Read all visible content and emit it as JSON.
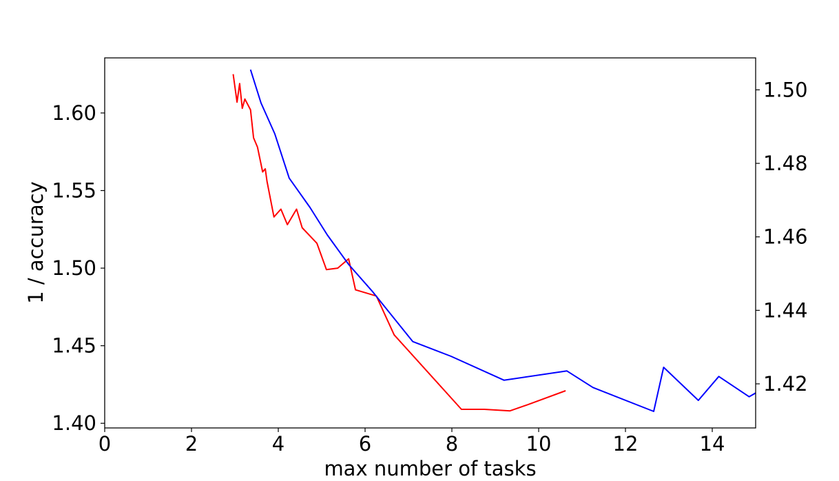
{
  "chart_data": {
    "type": "line",
    "title": "",
    "xlabel": "max number of tasks",
    "ylabel": "1 / accuracy",
    "y2label": "",
    "xlim": [
      0,
      15
    ],
    "ylim": [
      1.397,
      1.6355
    ],
    "y2lim": [
      1.408,
      1.5087
    ],
    "grid": false,
    "legend": "none",
    "xticks": [
      "0",
      "2",
      "4",
      "6",
      "8",
      "10",
      "12",
      "14"
    ],
    "yticks": [
      "1.40",
      "1.45",
      "1.50",
      "1.55",
      "1.60"
    ],
    "y2ticks": [
      "1.42",
      "1.44",
      "1.46",
      "1.48",
      "1.50"
    ],
    "series": [
      {
        "axis": "left",
        "color": "#ff0000",
        "x": [
          2.96,
          3.05,
          3.11,
          3.17,
          3.23,
          3.36,
          3.43,
          3.52,
          3.64,
          3.7,
          3.74,
          3.9,
          4.06,
          4.21,
          4.42,
          4.55,
          4.89,
          5.11,
          5.37,
          5.62,
          5.78,
          6.26,
          6.67,
          8.22,
          8.75,
          9.34,
          9.75,
          10.62
        ],
        "values": [
          1.625,
          1.607,
          1.619,
          1.603,
          1.609,
          1.602,
          1.584,
          1.578,
          1.562,
          1.564,
          1.556,
          1.533,
          1.538,
          1.528,
          1.538,
          1.526,
          1.516,
          1.499,
          1.5,
          1.506,
          1.486,
          1.482,
          1.457,
          1.409,
          1.409,
          1.408,
          1.412,
          1.421
        ]
      },
      {
        "axis": "right",
        "color": "#0000ff",
        "x": [
          3.36,
          3.6,
          3.92,
          4.25,
          4.73,
          5.13,
          5.62,
          6.18,
          7.1,
          7.98,
          9.2,
          10.65,
          11.25,
          12.65,
          12.88,
          13.68,
          14.15,
          14.85,
          15.0
        ],
        "values": [
          1.5055,
          1.4965,
          1.488,
          1.476,
          1.468,
          1.4605,
          1.4525,
          1.445,
          1.4315,
          1.4275,
          1.421,
          1.4235,
          1.419,
          1.4125,
          1.4245,
          1.4155,
          1.422,
          1.4165,
          1.4175
        ]
      }
    ]
  }
}
